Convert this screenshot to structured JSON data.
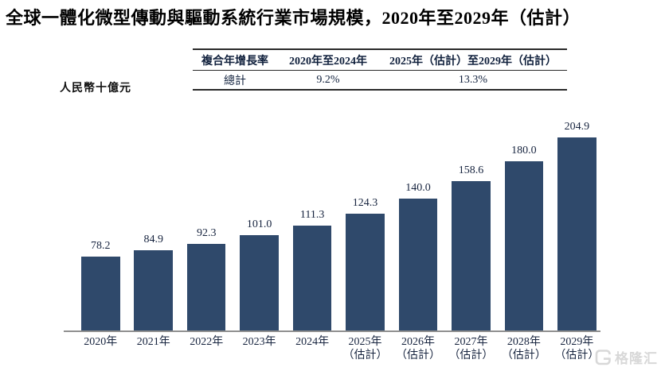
{
  "title": "全球一體化微型傳動與驅動系統行業市場規模，2020年至2029年（估計）",
  "unit_label": "人民幣十億元",
  "cagr_table": {
    "headers": [
      "複合年增長率",
      "2020年至2024年",
      "2025年（估計）至2029年（估計）"
    ],
    "rows": [
      [
        "總計",
        "9.2%",
        "13.3%"
      ]
    ]
  },
  "chart_data": {
    "type": "bar",
    "title": "全球一體化微型傳動與驅動系統行業市場規模，2020年至2029年（估計）",
    "ylabel": "人民幣十億元",
    "xlabel": "",
    "categories": [
      "2020年",
      "2021年",
      "2022年",
      "2023年",
      "2024年",
      "2025年\n（估計）",
      "2026年\n（估計）",
      "2027年\n（估計）",
      "2028年\n（估計）",
      "2029年\n（估計）"
    ],
    "values": [
      78.2,
      84.9,
      92.3,
      101.0,
      111.3,
      124.3,
      140.0,
      158.6,
      180.0,
      204.9
    ],
    "data_labels": [
      "78.2",
      "84.9",
      "92.3",
      "101.0",
      "111.3",
      "124.3",
      "140.0",
      "158.6",
      "180.0",
      "204.9"
    ],
    "ylim": [
      0,
      220
    ],
    "grid": false,
    "legend": false,
    "bar_color": "#2f496b",
    "text_color": "#16233e",
    "axis_line_color": "#8f8f8f"
  },
  "watermark": {
    "text": "格隆汇",
    "icon": "gelonghui-logo",
    "color": "#d8d8d8"
  }
}
